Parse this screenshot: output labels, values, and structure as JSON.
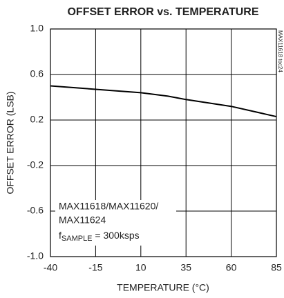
{
  "chart_data": {
    "type": "line",
    "title": "OFFSET ERROR vs. TEMPERATURE",
    "x_label": "TEMPERATURE (°C)",
    "y_label": "OFFSET ERROR (LSB)",
    "side_note": "MAX11618 toc24",
    "annotation_lines": [
      "MAX11618/MAX11620/",
      "MAX11624"
    ],
    "sample_rate": [
      "f",
      "SAMPLE",
      " = 300ksps"
    ],
    "x": [
      -40,
      -15,
      10,
      25,
      35,
      60,
      85
    ],
    "series": [
      {
        "color": "#000000",
        "values": [
          0.5,
          0.47,
          0.44,
          0.41,
          0.38,
          0.32,
          0.23
        ]
      }
    ],
    "xlim": [
      -40,
      85
    ],
    "xticks": [
      -40,
      -15,
      10,
      35,
      60,
      85
    ],
    "ylim": [
      -1,
      1
    ],
    "yticks": [
      {
        "value": 1,
        "label": "1.0"
      },
      0.6,
      0.2,
      -0.2,
      -0.6,
      {
        "value": -1,
        "label": "-1.0"
      }
    ],
    "grid": true
  }
}
